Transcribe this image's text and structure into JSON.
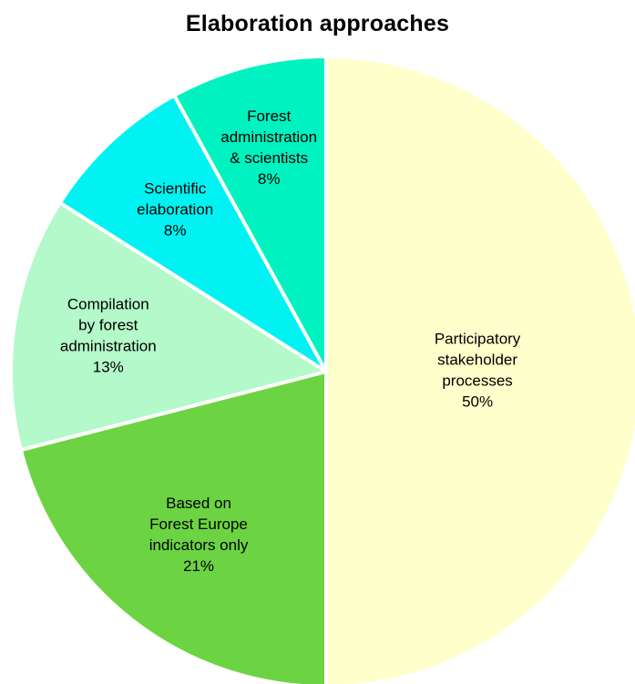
{
  "chart_data": {
    "type": "pie",
    "title": "Elaboration approaches",
    "slices": [
      {
        "label": [
          "Participatory",
          "stakeholder",
          "processes"
        ],
        "percent_label": "50%",
        "value": 50,
        "color": "#FFFFCC"
      },
      {
        "label": [
          "Based on",
          "Forest Europe",
          "indicators only"
        ],
        "percent_label": "21%",
        "value": 21,
        "color": "#6CD442"
      },
      {
        "label": [
          "Compilation",
          "by forest",
          "administration"
        ],
        "percent_label": "13%",
        "value": 13,
        "color": "#B3F9C9"
      },
      {
        "label": [
          "Scientific",
          "elaboration"
        ],
        "percent_label": "8%",
        "value": 8,
        "color": "#00F2F2"
      },
      {
        "label": [
          "Forest",
          "administration",
          "& scientists"
        ],
        "percent_label": "8%",
        "value": 8,
        "color": "#00F2C0"
      }
    ],
    "start_angle": "12 o'clock",
    "direction": "clockwise",
    "legend": "none"
  }
}
